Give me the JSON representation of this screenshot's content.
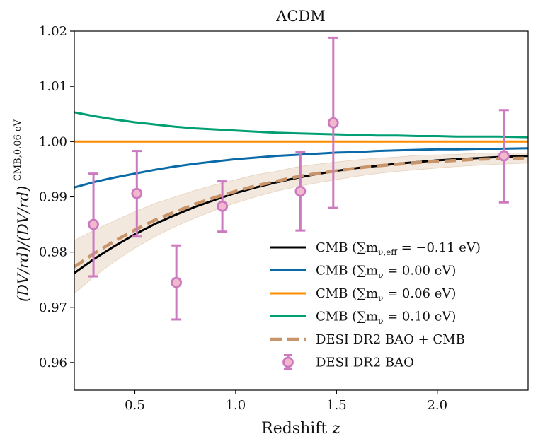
{
  "chart_data": {
    "type": "line",
    "title": "ΛCDM",
    "xlabel": "Redshift z",
    "ylabel": "(D_V/r_d)/(D_V/r_d)^CMB,0.06eV",
    "ylabel_main": "(DV/rd)/(DV/rd)",
    "ylabel_sup": "CMB,0.06 eV",
    "xlim": [
      0.2,
      2.45
    ],
    "ylim": [
      0.955,
      1.02
    ],
    "xticks": [
      0.5,
      1.0,
      1.5,
      2.0
    ],
    "xtick_labels": [
      "0.5",
      "1.0",
      "1.5",
      "2.0"
    ],
    "yticks": [
      0.96,
      0.97,
      0.98,
      0.99,
      1.0,
      1.01,
      1.02
    ],
    "ytick_labels": [
      "0.96",
      "0.97",
      "0.98",
      "0.99",
      "1.00",
      "1.01",
      "1.02"
    ],
    "grid": false,
    "legend_position": "bottom-right",
    "x": [
      0.2,
      0.3,
      0.4,
      0.5,
      0.6,
      0.7,
      0.8,
      0.9,
      1.0,
      1.1,
      1.2,
      1.3,
      1.4,
      1.5,
      1.6,
      1.7,
      1.8,
      1.9,
      2.0,
      2.1,
      2.2,
      2.3,
      2.45
    ],
    "series": [
      {
        "name": "CMB (∑m_ν,eff = −0.11 eV)",
        "label": "CMB (∑m",
        "label_sub": "ν,eff",
        "label_rest": " = −0.11 eV)",
        "color": "#000000",
        "style": "solid",
        "values": [
          0.9762,
          0.9788,
          0.9811,
          0.9832,
          0.9851,
          0.9867,
          0.9882,
          0.9895,
          0.9907,
          0.9917,
          0.9926,
          0.9934,
          0.9941,
          0.9947,
          0.9952,
          0.9956,
          0.996,
          0.9963,
          0.9966,
          0.9968,
          0.997,
          0.9972,
          0.9974
        ]
      },
      {
        "name": "CMB (∑m_ν = 0.00 eV)",
        "label": "CMB (∑m",
        "label_sub": "ν",
        "label_rest": " = 0.00 eV)",
        "color": "#0a6aa8",
        "style": "solid",
        "values": [
          0.9917,
          0.9927,
          0.9935,
          0.9942,
          0.9949,
          0.9955,
          0.996,
          0.9964,
          0.9968,
          0.9971,
          0.9974,
          0.9976,
          0.9978,
          0.998,
          0.9981,
          0.9983,
          0.9984,
          0.9985,
          0.9986,
          0.9986,
          0.9987,
          0.9987,
          0.9988
        ]
      },
      {
        "name": "CMB (∑m_ν = 0.06 eV)",
        "label": "CMB (∑m",
        "label_sub": "ν",
        "label_rest": " = 0.06 eV)",
        "color": "#ff8c00",
        "style": "solid",
        "values": [
          1.0,
          1.0,
          1.0,
          1.0,
          1.0,
          1.0,
          1.0,
          1.0,
          1.0,
          1.0,
          1.0,
          1.0,
          1.0,
          1.0,
          1.0,
          1.0,
          1.0,
          1.0,
          1.0,
          1.0,
          1.0,
          1.0,
          1.0
        ]
      },
      {
        "name": "CMB (∑m_ν = 0.10 eV)",
        "label": "CMB (∑m",
        "label_sub": "ν",
        "label_rest": " = 0.10 eV)",
        "color": "#009e73",
        "style": "solid",
        "values": [
          1.0053,
          1.0046,
          1.004,
          1.0035,
          1.0031,
          1.0027,
          1.0024,
          1.0022,
          1.002,
          1.0018,
          1.0016,
          1.0015,
          1.0014,
          1.0013,
          1.0012,
          1.0011,
          1.0011,
          1.001,
          1.001,
          1.0009,
          1.0009,
          1.0009,
          1.0008
        ]
      },
      {
        "name": "DESI DR2 BAO + CMB",
        "label": "DESI DR2 BAO + CMB",
        "label_sub": "",
        "label_rest": "",
        "color": "#c8956b",
        "style": "dashed",
        "values": [
          0.9773,
          0.9798,
          0.982,
          0.984,
          0.9858,
          0.9873,
          0.9887,
          0.9899,
          0.991,
          0.992,
          0.9928,
          0.9936,
          0.9942,
          0.9947,
          0.9952,
          0.9956,
          0.9959,
          0.9962,
          0.9964,
          0.9966,
          0.9968,
          0.9969,
          0.997
        ],
        "band_lower": [
          0.9725,
          0.9756,
          0.9783,
          0.9807,
          0.9828,
          0.9846,
          0.9862,
          0.9876,
          0.9889,
          0.99,
          0.991,
          0.9918,
          0.9925,
          0.9931,
          0.9937,
          0.9942,
          0.9946,
          0.9949,
          0.9952,
          0.9955,
          0.9957,
          0.9959,
          0.9961
        ],
        "band_upper": [
          0.9821,
          0.984,
          0.9857,
          0.9873,
          0.9888,
          0.99,
          0.9912,
          0.9922,
          0.9931,
          0.994,
          0.9946,
          0.9954,
          0.9959,
          0.9963,
          0.9967,
          0.997,
          0.9972,
          0.9975,
          0.9976,
          0.9977,
          0.9979,
          0.9979,
          0.9979
        ]
      }
    ],
    "points": {
      "name": "DESI DR2 BAO",
      "color": "#cc79c0",
      "fill": "#f2b8cc",
      "data": [
        {
          "x": 0.295,
          "y": 0.985,
          "err_low": 0.0094,
          "err_high": 0.0092
        },
        {
          "x": 0.51,
          "y": 0.9906,
          "err_low": 0.0078,
          "err_high": 0.0077
        },
        {
          "x": 0.706,
          "y": 0.9745,
          "err_low": 0.0067,
          "err_high": 0.0067
        },
        {
          "x": 0.934,
          "y": 0.9883,
          "err_low": 0.0046,
          "err_high": 0.0045
        },
        {
          "x": 1.321,
          "y": 0.991,
          "err_low": 0.0071,
          "err_high": 0.0071
        },
        {
          "x": 1.484,
          "y": 1.0034,
          "err_low": 0.0154,
          "err_high": 0.0154
        },
        {
          "x": 2.33,
          "y": 0.9974,
          "err_low": 0.0084,
          "err_high": 0.0083
        }
      ]
    },
    "legend": [
      {
        "label": "CMB (∑m",
        "sub": "ν,eff",
        "rest": " = −0.11 eV)"
      },
      {
        "label": "CMB (∑m",
        "sub": "ν",
        "rest": " = 0.00 eV)"
      },
      {
        "label": "CMB (∑m",
        "sub": "ν",
        "rest": " = 0.06 eV)"
      },
      {
        "label": "CMB (∑m",
        "sub": "ν",
        "rest": " = 0.10 eV)"
      },
      {
        "label": "DESI DR2 BAO + CMB",
        "sub": "",
        "rest": ""
      },
      {
        "label": "DESI DR2 BAO",
        "sub": "",
        "rest": ""
      }
    ]
  }
}
